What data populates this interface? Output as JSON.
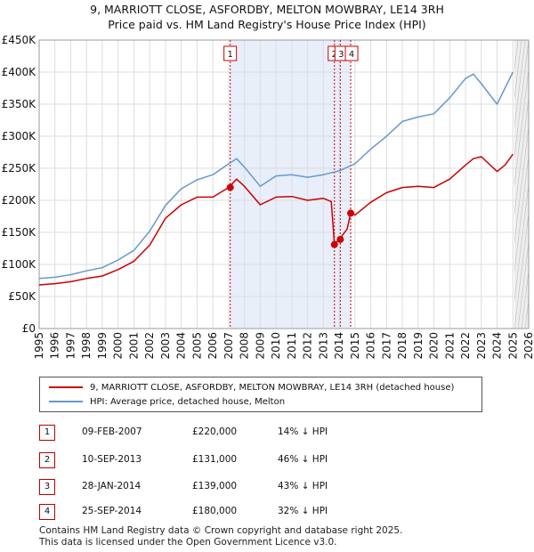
{
  "title_line1": "9, MARRIOTT CLOSE, ASFORDBY, MELTON MOWBRAY, LE14 3RH",
  "title_line2": "Price paid vs. HM Land Registry's House Price Index (HPI)",
  "colors": {
    "property": "#cc0000",
    "hpi": "#6699cc",
    "shade": "#e8eefa",
    "grid": "#dddddd"
  },
  "chart_data": {
    "type": "line",
    "x_axis": {
      "min": 1995,
      "max": 2026,
      "ticks": [
        "1995",
        "1996",
        "1997",
        "1998",
        "1999",
        "2000",
        "2001",
        "2002",
        "2003",
        "2004",
        "2005",
        "2006",
        "2007",
        "2008",
        "2009",
        "2010",
        "2011",
        "2012",
        "2013",
        "2014",
        "2015",
        "2016",
        "2017",
        "2018",
        "2019",
        "2020",
        "2021",
        "2022",
        "2023",
        "2024",
        "2025",
        "2026"
      ]
    },
    "y_axis": {
      "min": 0,
      "max": 450000,
      "ticks": [
        {
          "v": 0,
          "label": "£0"
        },
        {
          "v": 50000,
          "label": "£50K"
        },
        {
          "v": 100000,
          "label": "£100K"
        },
        {
          "v": 150000,
          "label": "£150K"
        },
        {
          "v": 200000,
          "label": "£200K"
        },
        {
          "v": 250000,
          "label": "£250K"
        },
        {
          "v": 300000,
          "label": "£300K"
        },
        {
          "v": 350000,
          "label": "£350K"
        },
        {
          "v": 400000,
          "label": "£400K"
        },
        {
          "v": 450000,
          "label": "£450K"
        }
      ]
    },
    "shaded_range": [
      2007.1,
      2014.73
    ],
    "forecast_start": 2025.1,
    "series": [
      {
        "name": "9, MARRIOTT CLOSE, ASFORDBY, MELTON MOWBRAY, LE14 3RH (detached house)",
        "color": "#cc0000",
        "points": [
          [
            1995,
            68000
          ],
          [
            1996,
            70000
          ],
          [
            1997,
            73000
          ],
          [
            1998,
            78000
          ],
          [
            1999,
            82000
          ],
          [
            2000,
            92000
          ],
          [
            2001,
            105000
          ],
          [
            2002,
            130000
          ],
          [
            2003,
            172000
          ],
          [
            2004,
            193000
          ],
          [
            2005,
            205000
          ],
          [
            2006,
            205000
          ],
          [
            2007,
            220000
          ],
          [
            2007.5,
            233000
          ],
          [
            2008,
            222000
          ],
          [
            2009,
            193000
          ],
          [
            2010,
            205000
          ],
          [
            2011,
            206000
          ],
          [
            2012,
            200000
          ],
          [
            2013,
            203000
          ],
          [
            2013.5,
            198000
          ],
          [
            2013.7,
            131000
          ],
          [
            2014,
            139000
          ],
          [
            2014.5,
            155000
          ],
          [
            2014.73,
            180000
          ],
          [
            2015,
            177000
          ],
          [
            2016,
            197000
          ],
          [
            2017,
            212000
          ],
          [
            2018,
            220000
          ],
          [
            2019,
            222000
          ],
          [
            2020,
            220000
          ],
          [
            2021,
            233000
          ],
          [
            2022,
            255000
          ],
          [
            2022.5,
            265000
          ],
          [
            2023,
            268000
          ],
          [
            2024,
            245000
          ],
          [
            2024.5,
            255000
          ],
          [
            2025,
            272000
          ]
        ]
      },
      {
        "name": "HPI: Average price, detached house, Melton",
        "color": "#6699cc",
        "points": [
          [
            1995,
            78000
          ],
          [
            1996,
            80000
          ],
          [
            1997,
            84000
          ],
          [
            1998,
            90000
          ],
          [
            1999,
            95000
          ],
          [
            2000,
            107000
          ],
          [
            2001,
            122000
          ],
          [
            2002,
            152000
          ],
          [
            2003,
            192000
          ],
          [
            2004,
            218000
          ],
          [
            2005,
            232000
          ],
          [
            2006,
            240000
          ],
          [
            2007,
            257000
          ],
          [
            2007.5,
            265000
          ],
          [
            2008,
            252000
          ],
          [
            2009,
            222000
          ],
          [
            2010,
            238000
          ],
          [
            2011,
            240000
          ],
          [
            2012,
            236000
          ],
          [
            2013,
            240000
          ],
          [
            2014,
            246000
          ],
          [
            2015,
            257000
          ],
          [
            2016,
            280000
          ],
          [
            2017,
            300000
          ],
          [
            2018,
            323000
          ],
          [
            2019,
            330000
          ],
          [
            2020,
            335000
          ],
          [
            2021,
            360000
          ],
          [
            2022,
            390000
          ],
          [
            2022.5,
            397000
          ],
          [
            2023,
            382000
          ],
          [
            2024,
            350000
          ],
          [
            2024.5,
            375000
          ],
          [
            2025,
            400000
          ]
        ]
      }
    ],
    "markers": [
      {
        "label": "1",
        "x": 2007.1,
        "y": 220000
      },
      {
        "label": "2",
        "x": 2013.7,
        "y": 131000
      },
      {
        "label": "3",
        "x": 2014.07,
        "y": 139000
      },
      {
        "label": "4",
        "x": 2014.73,
        "y": 180000
      }
    ]
  },
  "legend": {
    "property_label": "9, MARRIOTT CLOSE, ASFORDBY, MELTON MOWBRAY, LE14 3RH (detached house)",
    "hpi_label": "HPI: Average price, detached house, Melton"
  },
  "transactions": [
    {
      "num": "1",
      "date": "09-FEB-2007",
      "price": "£220,000",
      "hpi": "14% ↓ HPI"
    },
    {
      "num": "2",
      "date": "10-SEP-2013",
      "price": "£131,000",
      "hpi": "46% ↓ HPI"
    },
    {
      "num": "3",
      "date": "28-JAN-2014",
      "price": "£139,000",
      "hpi": "43% ↓ HPI"
    },
    {
      "num": "4",
      "date": "25-SEP-2014",
      "price": "£180,000",
      "hpi": "32% ↓ HPI"
    }
  ],
  "footer_line1": "Contains HM Land Registry data © Crown copyright and database right 2025.",
  "footer_line2": "This data is licensed under the Open Government Licence v3.0."
}
